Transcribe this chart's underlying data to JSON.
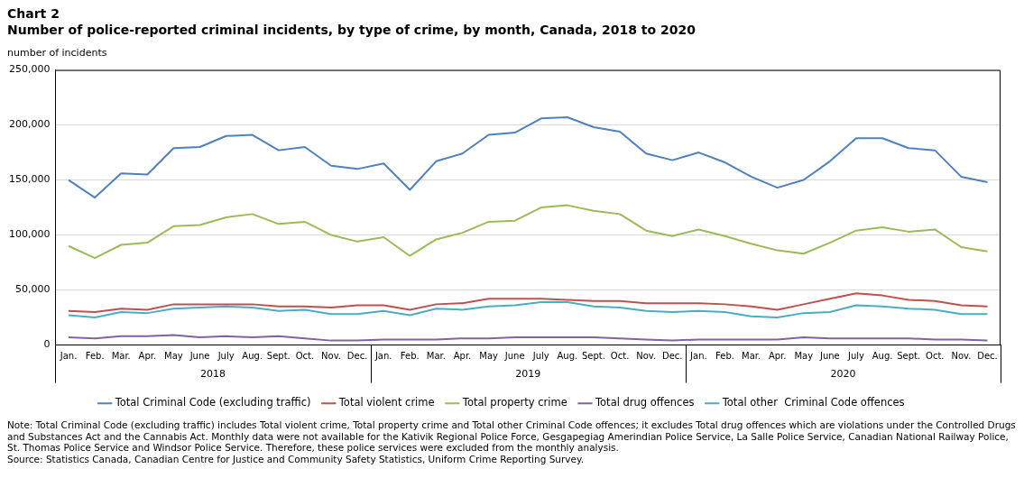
{
  "chart_data": {
    "type": "line",
    "title": "Chart 2",
    "subtitle": "Number of police-reported criminal incidents, by type of crime, by month, Canada, 2018 to 2020",
    "ylabel": "number of incidents",
    "categories": [
      "Jan.",
      "Feb.",
      "Mar.",
      "Apr.",
      "May",
      "June",
      "July",
      "Aug.",
      "Sept.",
      "Oct.",
      "Nov.",
      "Dec.",
      "Jan.",
      "Feb.",
      "Mar.",
      "Apr.",
      "May",
      "June",
      "July",
      "Aug.",
      "Sept.",
      "Oct.",
      "Nov.",
      "Dec.",
      "Jan.",
      "Feb.",
      "Mar.",
      "Apr.",
      "May",
      "June",
      "July",
      "Aug.",
      "Sept.",
      "Oct.",
      "Nov.",
      "Dec."
    ],
    "series": [
      {
        "name": "Total Criminal Code (excluding traffic)",
        "color": "#4f81bd",
        "values": [
          150000,
          134000,
          156000,
          155000,
          179000,
          180000,
          190000,
          191000,
          177000,
          180000,
          163000,
          160000,
          165000,
          141000,
          167000,
          174000,
          191000,
          193000,
          206000,
          207000,
          198000,
          194000,
          174000,
          168000,
          175000,
          166000,
          153000,
          143000,
          150000,
          167000,
          188000,
          188000,
          179000,
          177000,
          153000,
          148000
        ]
      },
      {
        "name": "Total violent crime",
        "color": "#c0504d",
        "values": [
          31000,
          30000,
          33000,
          32000,
          37000,
          37000,
          37000,
          37000,
          35000,
          35000,
          34000,
          36000,
          36000,
          32000,
          37000,
          38000,
          42000,
          42000,
          42000,
          41000,
          40000,
          40000,
          38000,
          38000,
          38000,
          37000,
          35000,
          32000,
          37000,
          42000,
          47000,
          45000,
          41000,
          40000,
          36000,
          35000
        ]
      },
      {
        "name": "Total property crime",
        "color": "#9bbb59",
        "values": [
          90000,
          79000,
          91000,
          93000,
          108000,
          109000,
          116000,
          119000,
          110000,
          112000,
          100000,
          94000,
          98000,
          81000,
          96000,
          102000,
          112000,
          113000,
          125000,
          127000,
          122000,
          119000,
          104000,
          99000,
          105000,
          99000,
          92000,
          86000,
          83000,
          93000,
          104000,
          107000,
          103000,
          105000,
          89000,
          85000
        ]
      },
      {
        "name": "Total drug offences",
        "color": "#8064a2",
        "values": [
          7000,
          6000,
          8000,
          8000,
          9000,
          7000,
          8000,
          7000,
          8000,
          6000,
          4000,
          4000,
          5000,
          5000,
          5000,
          6000,
          6000,
          7000,
          7000,
          7000,
          7000,
          6000,
          5000,
          4000,
          5000,
          5000,
          5000,
          5000,
          7000,
          6000,
          6000,
          6000,
          6000,
          5000,
          5000,
          4000
        ]
      },
      {
        "name": "Total other  Criminal Code offences",
        "color": "#4bacc6",
        "values": [
          27000,
          25000,
          30000,
          29000,
          33000,
          34000,
          35000,
          34000,
          31000,
          32000,
          28000,
          28000,
          31000,
          27000,
          33000,
          32000,
          35000,
          36000,
          39000,
          39000,
          35000,
          34000,
          31000,
          30000,
          31000,
          30000,
          26000,
          25000,
          29000,
          30000,
          36000,
          35000,
          33000,
          32000,
          28000,
          28000
        ]
      }
    ],
    "ylim": [
      0,
      250000
    ],
    "yticks": [
      0,
      {
        "value": 50000,
        "label": "50,000"
      },
      {
        "value": 100000,
        "label": "100,000"
      },
      {
        "value": 150000,
        "label": "150,000"
      },
      {
        "value": 200000,
        "label": "200,000"
      },
      {
        "value": 250000,
        "label": "250,000"
      }
    ],
    "grid": "y",
    "legend": "bottom",
    "marker": "none",
    "line_style": "solid",
    "annotations": [
      {
        "text": "2018"
      },
      {
        "text": "2019"
      },
      {
        "text": "2020"
      },
      "Note: Total Criminal Code (excluding traffic) includes Total violent crime, Total property crime and Total other Criminal Code offences; it excludes Total drug offences which are violations under the Controlled Drugs and Substances Act and the Cannabis Act. Monthly data were not available for the Kativik Regional Police Force, Gesgapegiag Amerindian Police Service, La Salle Police Service, Canadian National Railway Police, St. Thomas Police Service and Windsor Police Service. Therefore, these police services were excluded from the monthly analysis.",
      "Source: Statistics Canada, Canadian Centre for Justice and Community Safety Statistics, Uniform Crime Reporting Survey."
    ]
  }
}
